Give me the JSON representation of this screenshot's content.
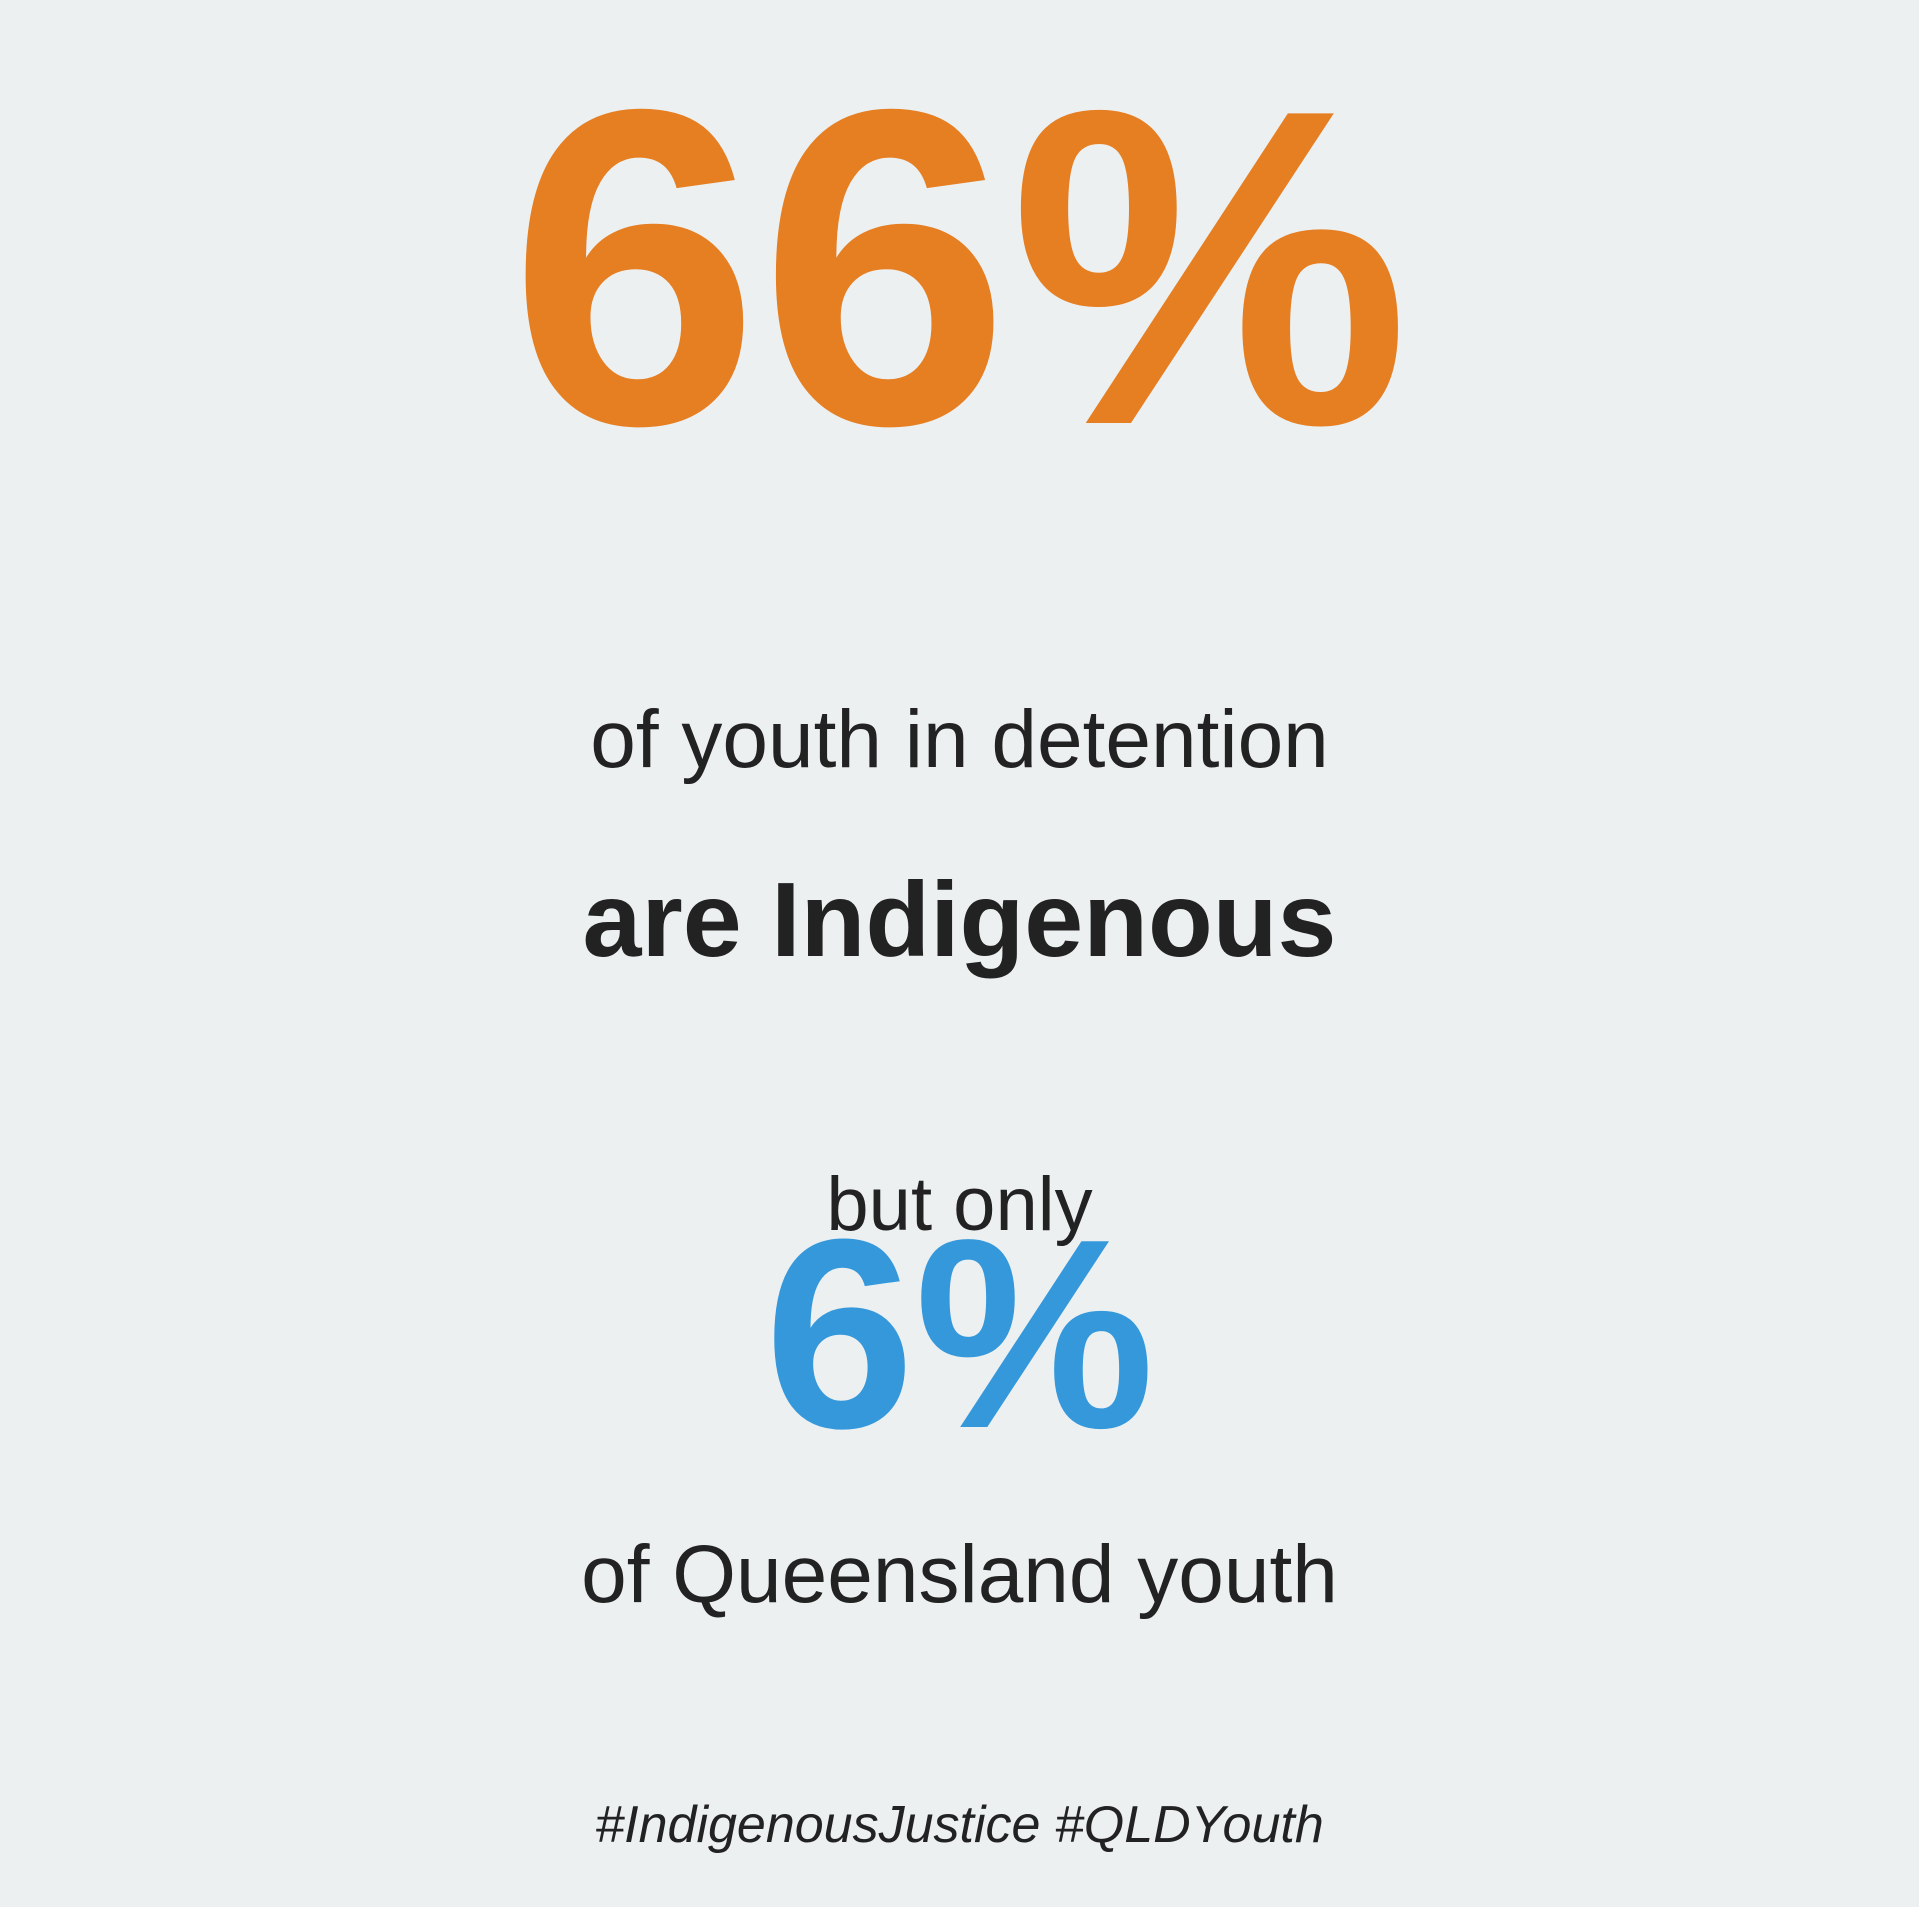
{
  "colors": {
    "background": "#ecf0f1",
    "accent_orange": "#e67e22",
    "accent_blue": "#3498db",
    "text": "#222222"
  },
  "stat_primary": {
    "value": "66%",
    "line1": "of youth in detention",
    "line2": "are Indigenous"
  },
  "stat_secondary": {
    "intro": "but only",
    "value": "6%",
    "line1": "of Queensland youth"
  },
  "hashtags": "#IndigenousJustice #QLDYouth"
}
